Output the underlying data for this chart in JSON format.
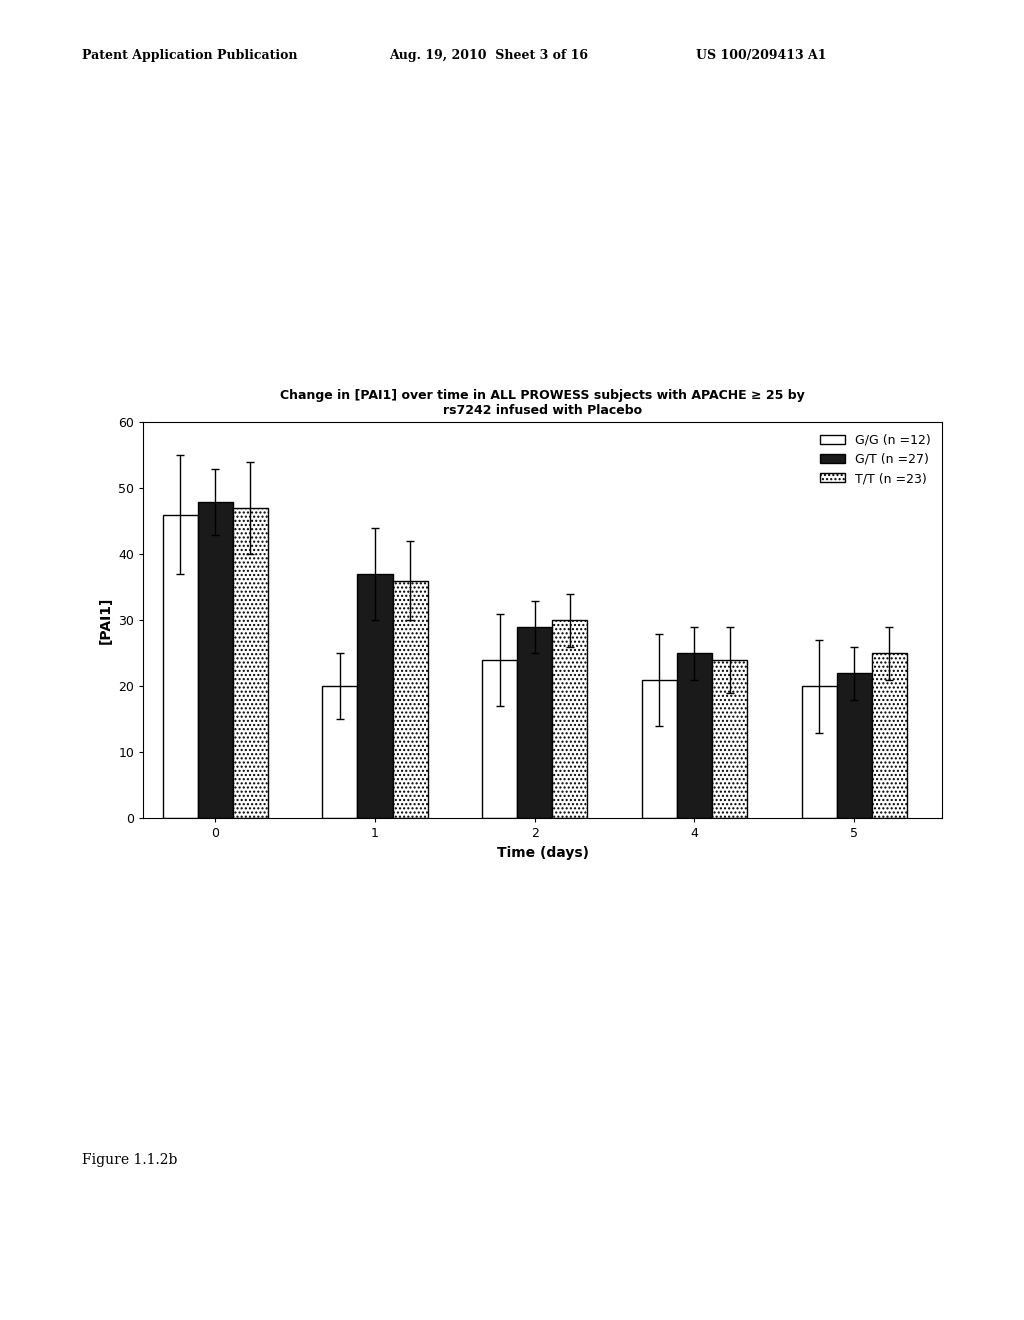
{
  "title_line1": "Change in [PAI1] over time in ALL PROWESS subjects with APACHE ≥ 25 by",
  "title_line2": "rs7242 infused with Placebo",
  "xlabel": "Time (days)",
  "ylabel": "[PAI1]",
  "time_points": [
    0,
    1,
    2,
    4,
    5
  ],
  "gg_values": [
    46,
    20,
    24,
    21,
    20
  ],
  "gt_values": [
    48,
    37,
    29,
    25,
    22
  ],
  "tt_values": [
    47,
    36,
    30,
    24,
    25
  ],
  "gg_errors": [
    9,
    5,
    7,
    7,
    7
  ],
  "gt_errors": [
    5,
    7,
    4,
    4,
    4
  ],
  "tt_errors": [
    7,
    6,
    4,
    5,
    4
  ],
  "gg_color": "#ffffff",
  "gt_color": "#1a1a1a",
  "tt_hatch": "....",
  "legend_labels": [
    "G/G (n =12)",
    "G/T (n =27)",
    "T/T (n =23)"
  ],
  "ylim": [
    0,
    60
  ],
  "yticks": [
    0,
    10,
    20,
    30,
    40,
    50,
    60
  ],
  "bar_width": 0.22,
  "edgecolor": "#000000",
  "figure_width": 10.24,
  "figure_height": 13.2,
  "footer_text": "Figure 1.1.2b",
  "title_fontsize": 9,
  "axis_fontsize": 10,
  "legend_fontsize": 9,
  "tick_fontsize": 9,
  "header_left": "Patent Application Publication",
  "header_mid": "Aug. 19, 2010  Sheet 3 of 16",
  "header_right": "US 100/209413 A1"
}
